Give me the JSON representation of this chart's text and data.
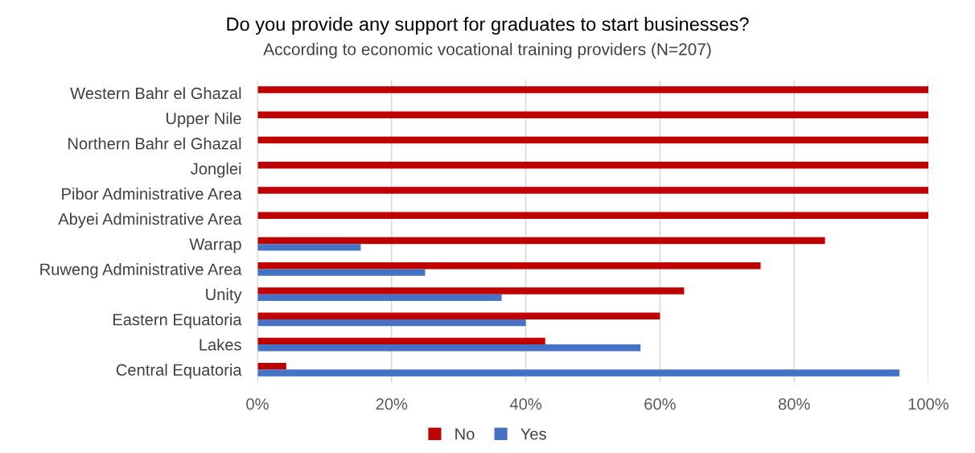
{
  "chart_data": {
    "type": "bar",
    "orientation": "horizontal",
    "title": "Do you provide any support for graduates to start businesses?",
    "subtitle": "According to economic vocational training providers (N=207)",
    "categories": [
      "Western Bahr el Ghazal",
      "Upper Nile",
      "Northern Bahr el Ghazal",
      "Jonglei",
      "Pibor Administrative Area",
      "Abyei Administrative Area",
      "Warrap",
      "Ruweng Administrative Area",
      "Unity",
      "Eastern Equatoria",
      "Lakes",
      "Central Equatoria"
    ],
    "series": [
      {
        "name": "No",
        "color": "#c00000",
        "values": [
          100,
          100,
          100,
          100,
          100,
          100,
          84.6,
          75,
          63.6,
          60,
          42.9,
          4.3
        ]
      },
      {
        "name": "Yes",
        "color": "#4472c4",
        "values": [
          0,
          0,
          0,
          0,
          0,
          0,
          15.4,
          25,
          36.4,
          40,
          57.1,
          95.7
        ]
      }
    ],
    "xlim": [
      0,
      100
    ],
    "xticks": [
      {
        "value": 0,
        "label": "0%"
      },
      {
        "value": 20,
        "label": "20%"
      },
      {
        "value": 40,
        "label": "40%"
      },
      {
        "value": 60,
        "label": "60%"
      },
      {
        "value": 80,
        "label": "80%"
      },
      {
        "value": 100,
        "label": "100%"
      }
    ],
    "grid": "x",
    "legend": "bottom"
  }
}
